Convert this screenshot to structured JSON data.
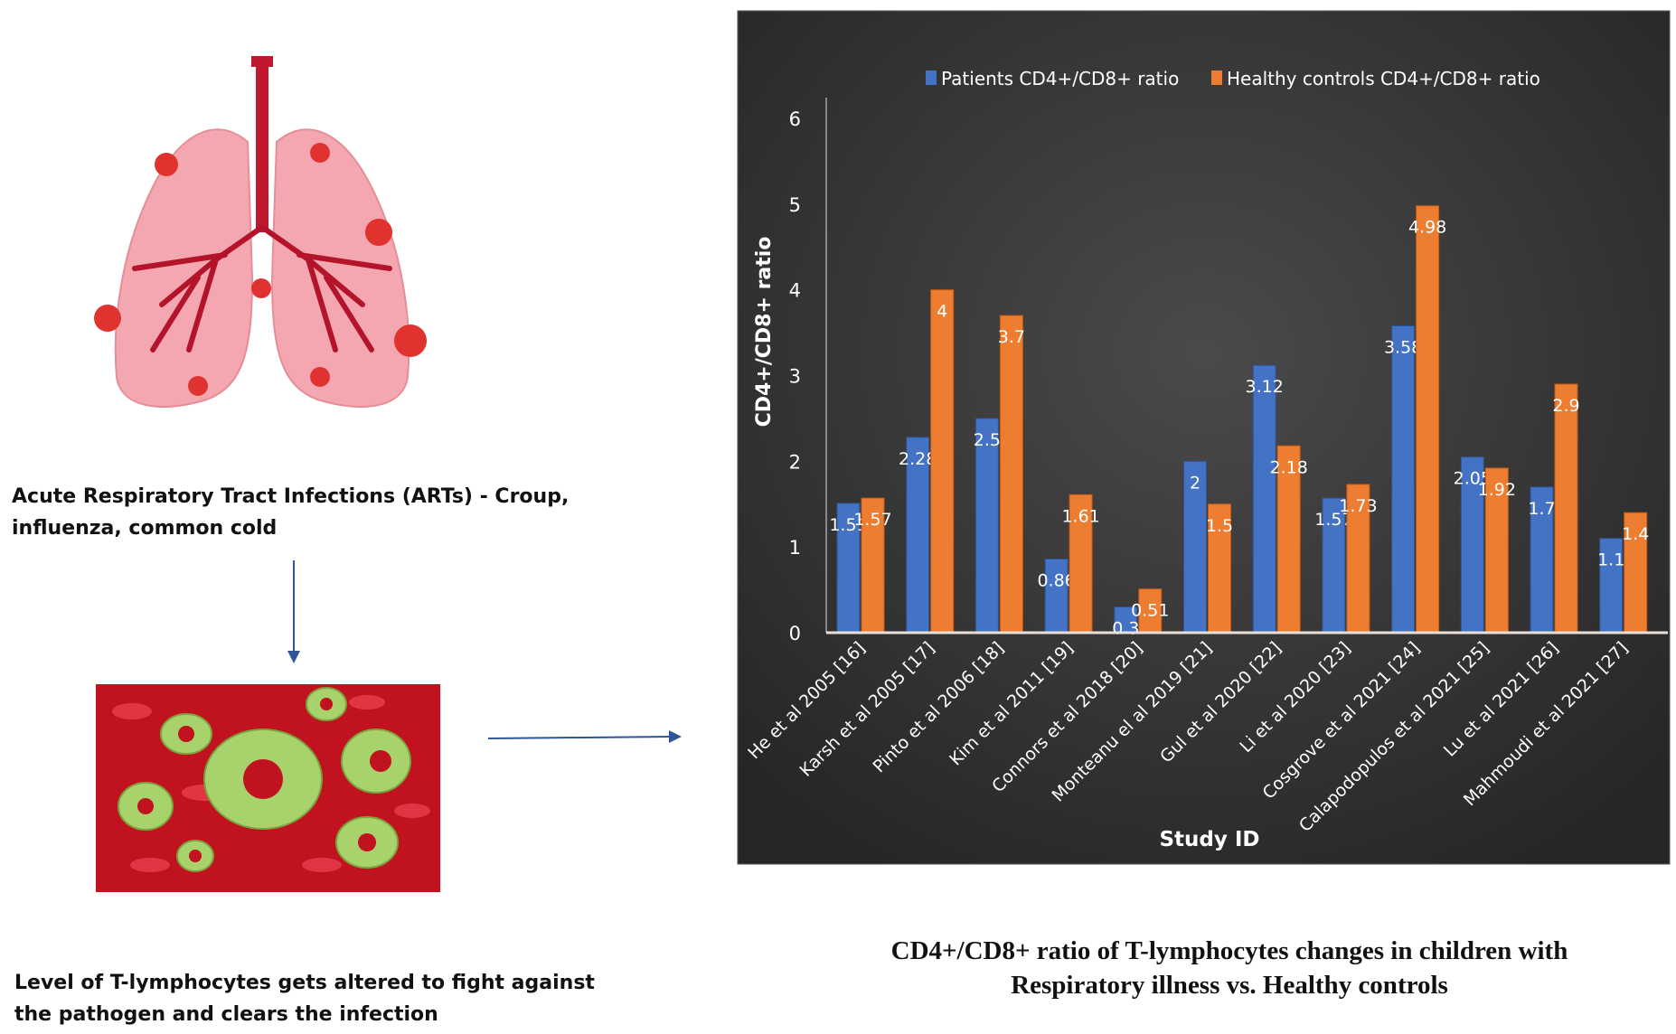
{
  "left_panel": {
    "infection_text": [
      "Acute Respiratory Tract Infections (ARTs) - Croup,",
      "influenza, common cold"
    ],
    "tcell_text": [
      "Level of T-lymphocytes gets altered to fight against",
      "the pathogen and clears the infection"
    ]
  },
  "caption": [
    "CD4+/CD8+ ratio of T-lymphocytes changes in children with",
    "Respiratory illness vs. Healthy controls"
  ],
  "colors": {
    "patients": "#4472c4",
    "controls": "#ed7d31",
    "background": "#3a3a3a"
  },
  "chart_data": {
    "type": "bar",
    "xlabel": "Study ID",
    "ylabel": "CD4+/CD8+ ratio",
    "ylim": [
      0,
      6
    ],
    "yticks": [
      0,
      1,
      2,
      3,
      4,
      5,
      6
    ],
    "legend_placement": "top",
    "grid": false,
    "categories": [
      "He et al 2005 [16]",
      "Karsh et al 2005 [17]",
      "Pinto et al 2006 [18]",
      "Kim et al 2011 [19]",
      "Connors et al 2018 [20]",
      "Monteanu el al 2019 [21]",
      "Gul et al 2020 [22]",
      "Li et al 2020 [23]",
      "Cosgrove et al 2021 [24]",
      "Calapodopulos et al 2021 [25]",
      "Lu et al 2021 [26]",
      "Mahmoudi et al 2021 [27]"
    ],
    "series": [
      {
        "name": "Patients CD4+/CD8+ ratio",
        "values": [
          1.51,
          2.28,
          2.5,
          0.86,
          0.3,
          2,
          3.12,
          1.57,
          3.58,
          2.05,
          1.7,
          1.1
        ]
      },
      {
        "name": "Healthy controls CD4+/CD8+ ratio",
        "values": [
          1.57,
          4,
          3.7,
          1.61,
          0.51,
          1.5,
          2.18,
          1.73,
          4.98,
          1.92,
          2.9,
          1.4
        ]
      }
    ]
  }
}
